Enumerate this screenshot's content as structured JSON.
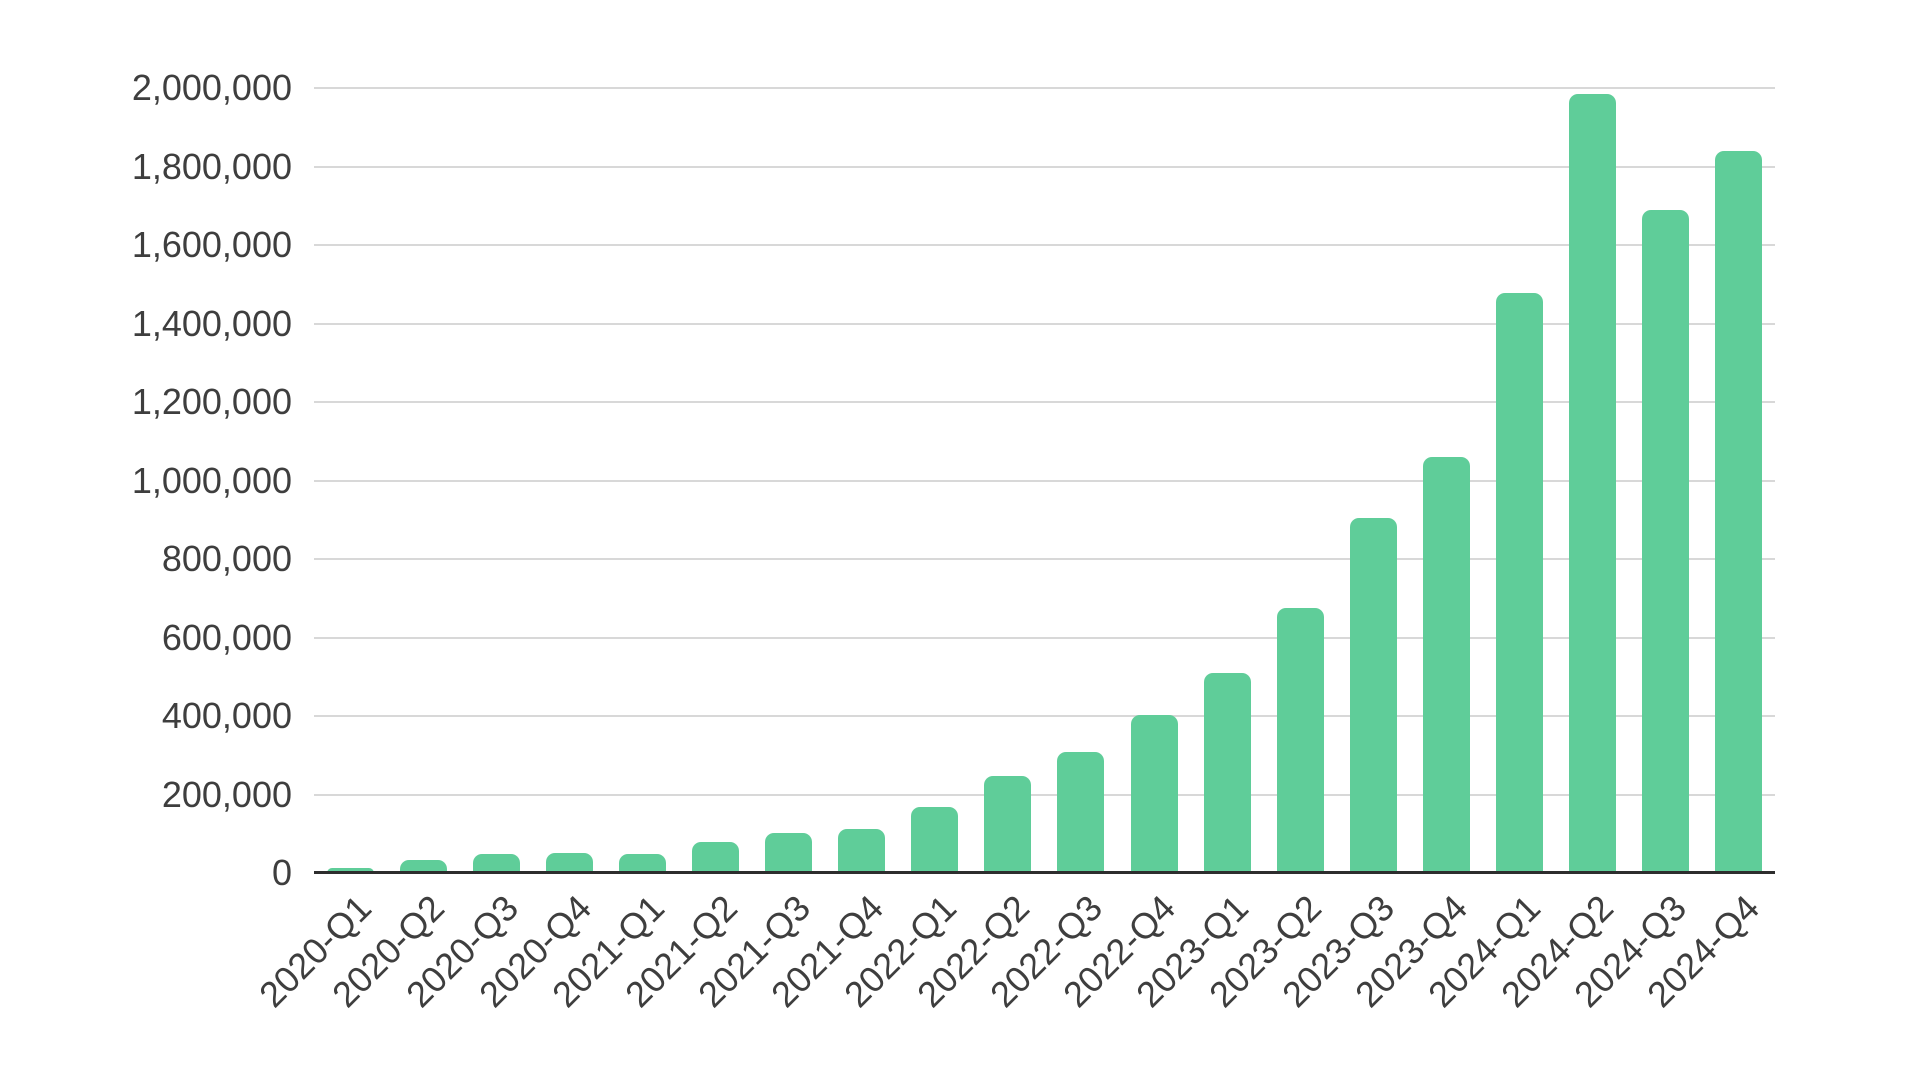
{
  "chart_data": {
    "type": "bar",
    "title": "",
    "xlabel": "",
    "ylabel": "",
    "categories": [
      "2020-Q1",
      "2020-Q2",
      "2020-Q3",
      "2020-Q4",
      "2021-Q1",
      "2021-Q2",
      "2021-Q3",
      "2021-Q4",
      "2022-Q1",
      "2022-Q2",
      "2022-Q3",
      "2022-Q4",
      "2023-Q1",
      "2023-Q2",
      "2023-Q3",
      "2023-Q4",
      "2024-Q1",
      "2024-Q2",
      "2024-Q3",
      "2024-Q4"
    ],
    "values": [
      13000,
      34000,
      48000,
      50000,
      49000,
      79000,
      103000,
      112000,
      167000,
      247000,
      309000,
      403000,
      510000,
      675000,
      905000,
      1060000,
      1478000,
      1985000,
      1688000,
      1840000
    ],
    "ylim": [
      0,
      2000000
    ],
    "y_ticks": [
      0,
      200000,
      400000,
      600000,
      800000,
      1000000,
      1200000,
      1400000,
      1600000,
      1800000,
      2000000
    ],
    "y_tick_labels": [
      "0",
      "200,000",
      "400,000",
      "600,000",
      "800,000",
      "1,000,000",
      "1,200,000",
      "1,400,000",
      "1,600,000",
      "1,800,000",
      "2,000,000"
    ],
    "grid": true,
    "legend": false,
    "x_label_rotation_deg": -45,
    "colors": {
      "bar": "#5fcd99",
      "gridline": "#d8d8d8",
      "axis_line": "#2d2d2d",
      "tick_label": "#3e3e3e",
      "background": "#ffffff"
    }
  }
}
